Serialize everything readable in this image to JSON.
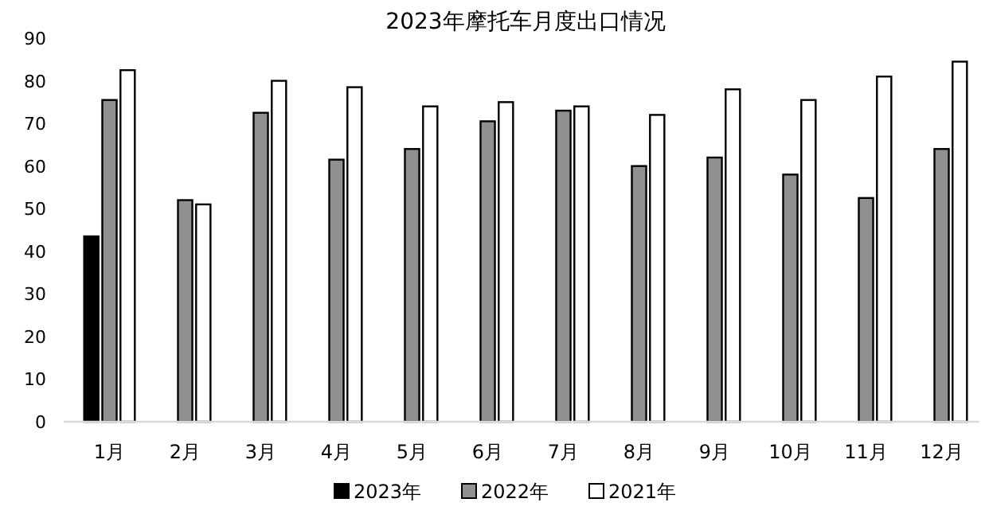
{
  "chart_data": {
    "type": "bar",
    "title": "2023年摩托车月度出口情况",
    "categories": [
      "1月",
      "2月",
      "3月",
      "4月",
      "5月",
      "6月",
      "7月",
      "8月",
      "9月",
      "10月",
      "11月",
      "12月"
    ],
    "series": [
      {
        "name": "2023年",
        "color": "#000000",
        "values": [
          43.5,
          null,
          null,
          null,
          null,
          null,
          null,
          null,
          null,
          null,
          null,
          null
        ]
      },
      {
        "name": "2022年",
        "color": "#909090",
        "values": [
          75.5,
          52,
          72.5,
          61.5,
          64,
          70.5,
          73,
          60,
          62,
          58,
          52.5,
          64
        ]
      },
      {
        "name": "2021年",
        "color": "#ffffff",
        "values": [
          82.5,
          51,
          80,
          78.5,
          74,
          75,
          74,
          72,
          78,
          75.5,
          81,
          84.5
        ]
      }
    ],
    "ylim": [
      0,
      90
    ],
    "yticks": [
      0,
      10,
      20,
      30,
      40,
      50,
      60,
      70,
      80,
      90
    ],
    "grid": false,
    "legend": "bottom"
  }
}
